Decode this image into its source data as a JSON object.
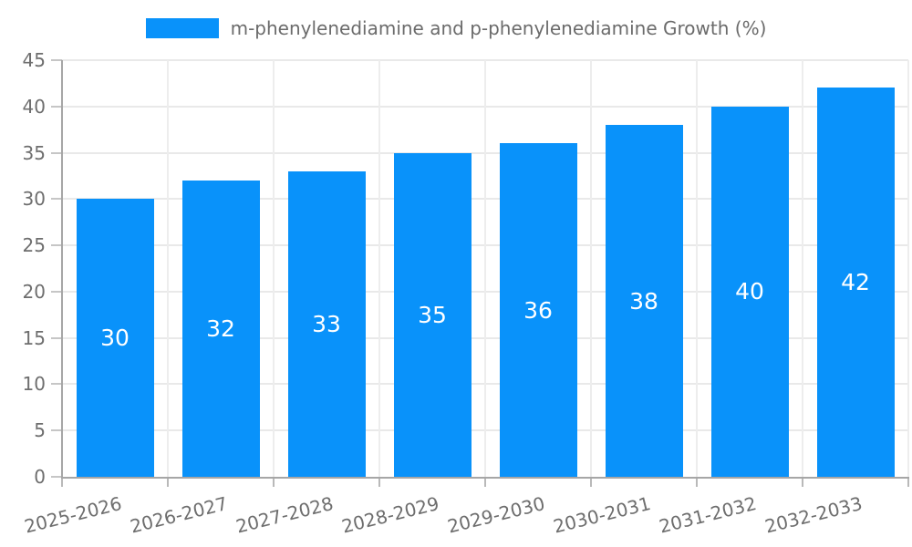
{
  "chart_data": {
    "type": "bar",
    "categories": [
      "2025-2026",
      "2026-2027",
      "2027-2028",
      "2028-2029",
      "2029-2030",
      "2030-2031",
      "2031-2032",
      "2032-2033"
    ],
    "series": [
      {
        "name": "m-phenylenediamine and p-phenylenediamine Growth (%)",
        "values": [
          30,
          32,
          33,
          35,
          36,
          38,
          40,
          42
        ],
        "color": "#0992fa"
      }
    ],
    "value_labels": [
      "30",
      "32",
      "33",
      "35",
      "36",
      "38",
      "40",
      "42"
    ],
    "value_label_color": "#ffffff",
    "xlabel": "",
    "ylabel": "",
    "ylim": [
      0,
      45
    ],
    "yticks": [
      0,
      5,
      10,
      15,
      20,
      25,
      30,
      35,
      40,
      45
    ],
    "ytick_labels": [
      "0",
      "5",
      "10",
      "15",
      "20",
      "25",
      "30",
      "35",
      "40",
      "45"
    ],
    "grid": true,
    "legend_position": "top",
    "legend": {
      "swatch_color": "#0992fa",
      "label": "m-phenylenediamine and p-phenylenediamine Growth (%)"
    },
    "style": {
      "bar_color": "#0992fa",
      "axis_color": "#a6a6a6",
      "gridline_color": "#e9e9e9",
      "tick_color": "#c6c6c6",
      "text_color": "#6e6e6e",
      "background": "#ffffff"
    }
  }
}
